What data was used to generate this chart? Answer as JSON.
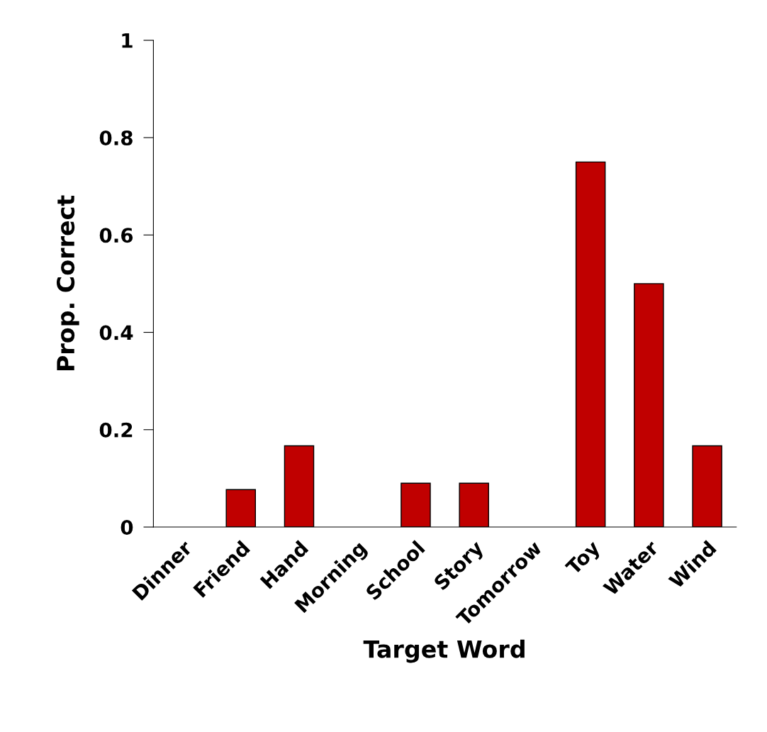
{
  "chart_data": {
    "type": "bar",
    "xlabel": "Target Word",
    "ylabel": "Prop. Correct",
    "categories": [
      "Dinner",
      "Friend",
      "Hand",
      "Morning",
      "School",
      "Story",
      "Tomorrow",
      "Toy",
      "Water",
      "Wind"
    ],
    "values": [
      0,
      0.077,
      0.167,
      0,
      0.09,
      0.09,
      0,
      0.75,
      0.5,
      0.167
    ],
    "color": "#c00000",
    "ylim": [
      0,
      1
    ],
    "yticks": [
      {
        "value": 0,
        "label": "0"
      },
      0.2,
      0.4,
      0.6,
      0.8,
      {
        "value": 1,
        "label": "1"
      }
    ],
    "grid": false
  }
}
